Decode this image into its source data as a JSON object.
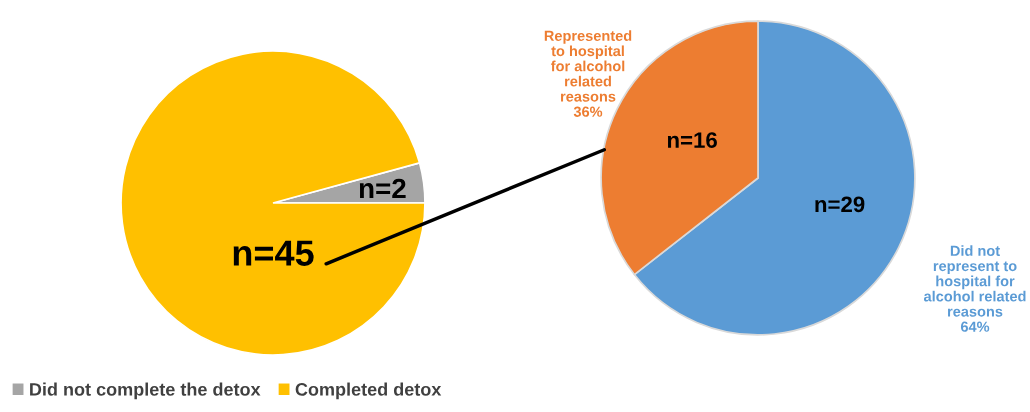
{
  "chart_data": [
    {
      "type": "pie",
      "categories": [
        "Did not complete the detox",
        "Completed detox"
      ],
      "values": [
        2,
        45
      ],
      "colors": [
        "#a5a5a5",
        "#ffc000"
      ],
      "value_labels": [
        "n=2",
        "n=45"
      ],
      "legend": "bottom left"
    },
    {
      "type": "pie",
      "categories": [
        "Did not\nrepresent to\nhospital for\nalcohol related\nreasons\n64%",
        "Represented\nto hospital\nfor alcohol\nrelated\nreasons\n36%"
      ],
      "values": [
        29,
        16
      ],
      "colors": [
        "#5b9bd5",
        "#ed7d31"
      ],
      "value_labels": [
        "n=29",
        "n=16"
      ]
    }
  ]
}
